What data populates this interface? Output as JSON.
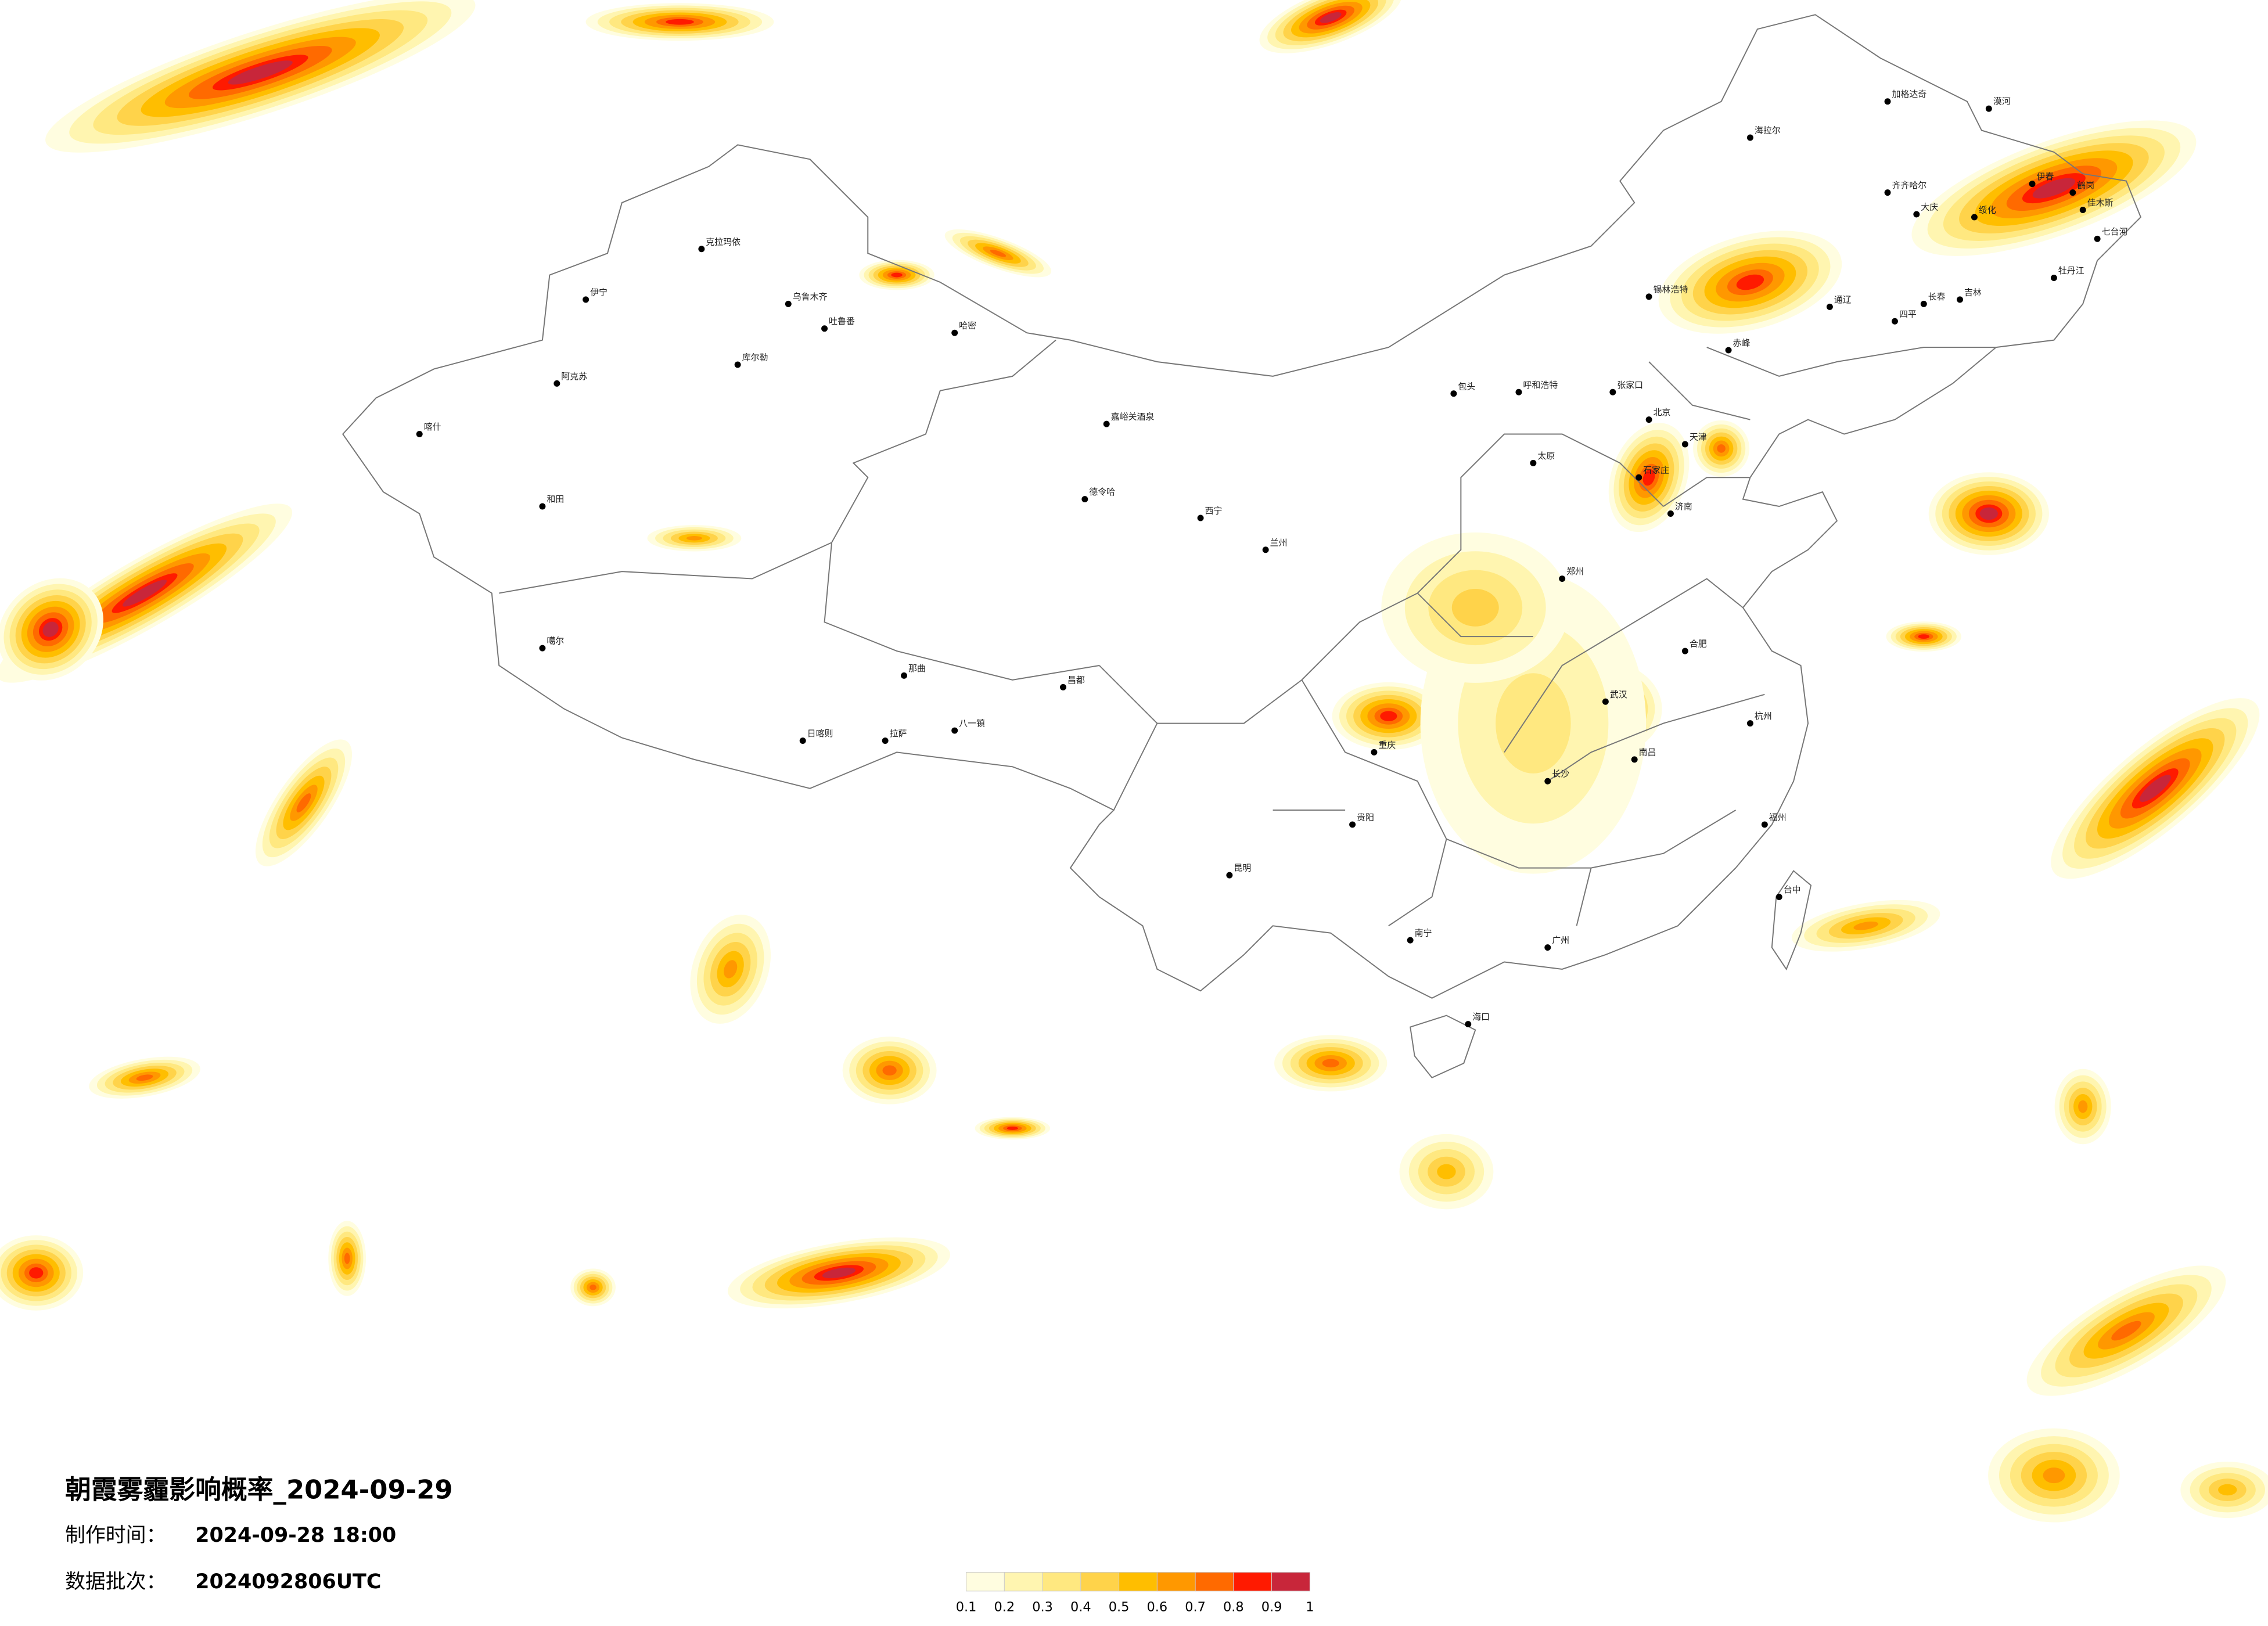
{
  "title": "朝霞雾霾影响概率_2024-09-29",
  "info": [
    {
      "label": "制作时间：",
      "value": "2024-09-28 18:00"
    },
    {
      "label": "数据批次：",
      "value": "2024092806UTC"
    }
  ],
  "legend": {
    "ticks": [
      0.1,
      0.2,
      0.3,
      0.4,
      0.5,
      0.6,
      0.7,
      0.8,
      0.9,
      1
    ],
    "colors": [
      "#fffde0",
      "#fff5b0",
      "#ffe880",
      "#ffd34a",
      "#ffbe00",
      "#ff9800",
      "#ff6a00",
      "#ff1a00",
      "#c8263a"
    ]
  },
  "cities": [
    "漠河",
    "加格达奇",
    "海拉尔",
    "齐齐哈尔",
    "伊春",
    "鹤岗",
    "佳木斯",
    "七台河",
    "绥化",
    "大庆",
    "牡丹江",
    "锡林浩特",
    "长春",
    "吉林",
    "四平",
    "通辽",
    "赤峰",
    "呼和浩特",
    "包头",
    "张家口",
    "北京",
    "天津",
    "石家庄",
    "太原",
    "济南",
    "郑州",
    "武汉",
    "长沙",
    "南昌",
    "合肥",
    "杭州",
    "福州",
    "广州",
    "南宁",
    "海口",
    "贵阳",
    "昆明",
    "重庆",
    "拉萨",
    "日喀则",
    "八一镇",
    "那曲",
    "昌都",
    "嘉峪关酒泉",
    "德令哈",
    "乌鲁木齐",
    "伊宁",
    "克拉玛依",
    "阿克苏",
    "喀什",
    "和田",
    "哈密",
    "吐鲁番",
    "库尔勒",
    "噶尔",
    "台中",
    "西宁",
    "兰州"
  ]
}
